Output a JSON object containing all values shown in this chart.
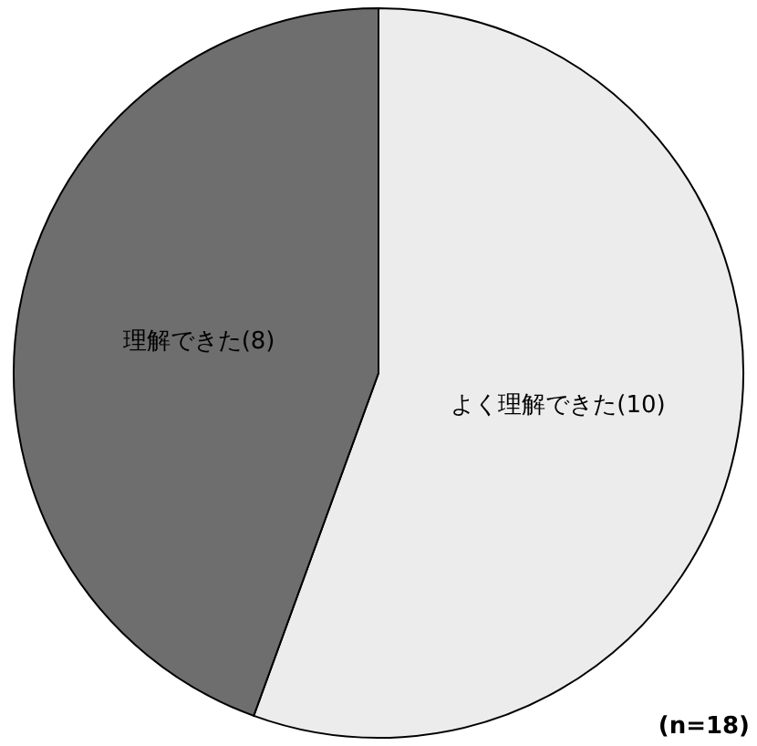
{
  "chart_data": {
    "type": "pie",
    "categories": [
      "よく理解できた",
      "理解できた"
    ],
    "values": [
      10,
      8
    ],
    "value_labels": [
      "(10)",
      "(8)"
    ],
    "colors": [
      "#ececec",
      "#6e6e6e"
    ],
    "annotations": [
      "(n=18)"
    ],
    "legend": false
  }
}
